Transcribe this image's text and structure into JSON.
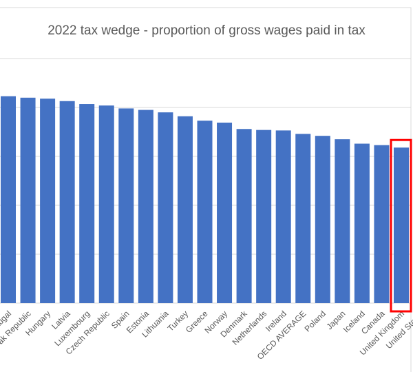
{
  "chart_data": {
    "type": "bar",
    "title": "2022 tax wedge - proportion of gross wages paid in tax",
    "categories": [
      "Portugal",
      "Slovak Republic",
      "Hungary",
      "Latvia",
      "Luxembourg",
      "Czech Republic",
      "Spain",
      "Estonia",
      "Lithuania",
      "Turkey",
      "Greece",
      "Norway",
      "Denmark",
      "Netherlands",
      "Ireland",
      "OECD AVERAGE",
      "Poland",
      "Japan",
      "Iceland",
      "Canada",
      "United Kingdom",
      "United States"
    ],
    "values": [
      42.3,
      42.0,
      41.8,
      41.3,
      40.7,
      40.4,
      39.8,
      39.5,
      39.0,
      38.2,
      37.3,
      36.9,
      35.6,
      35.4,
      35.3,
      34.6,
      34.2,
      33.5,
      32.6,
      32.3,
      31.8,
      31.5
    ],
    "bar_color": "#4472C4",
    "highlight_color": "#FF0000",
    "highlighted_categories": [
      "United Kingdom",
      "United States"
    ],
    "gridlines": true,
    "legend": "none"
  }
}
